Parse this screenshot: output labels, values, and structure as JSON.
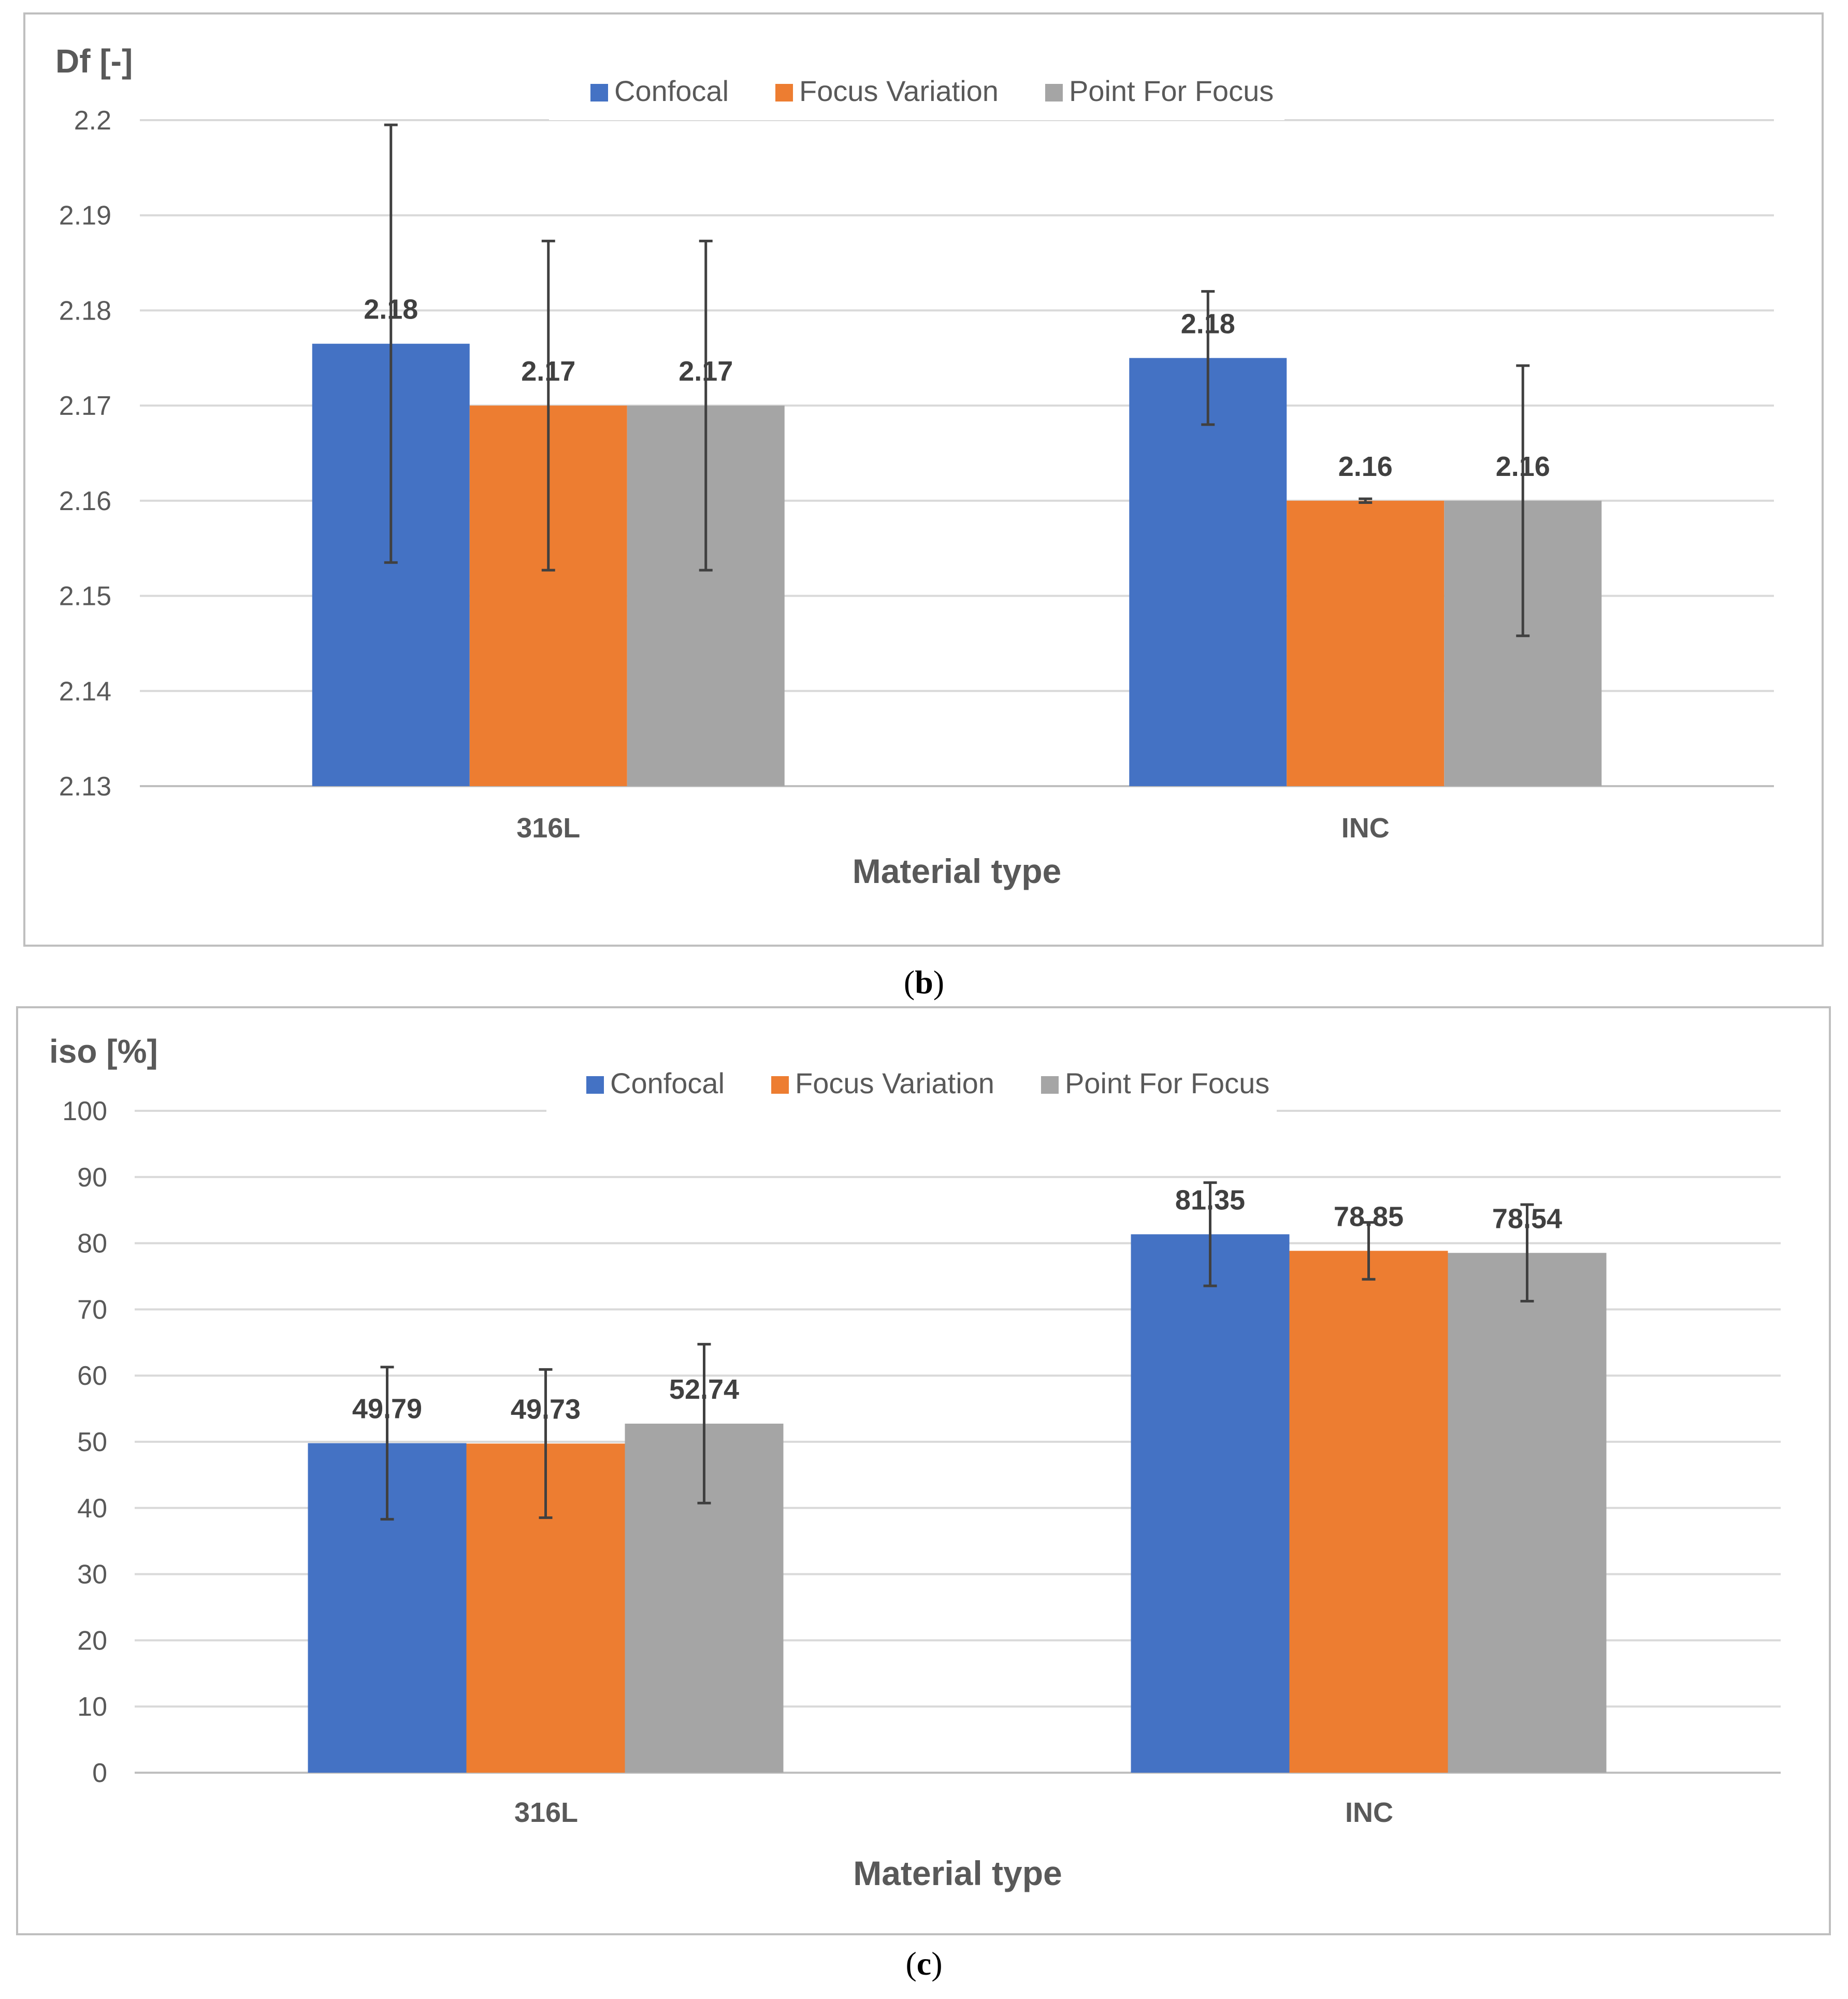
{
  "colors": {
    "confocal": "#4472C4",
    "focus_variation": "#ED7D31",
    "point_for_focus": "#A5A5A5",
    "gridline": "#D9D9D9",
    "frame": "#BFBFBF",
    "text": "#595959",
    "label_text": "#404040"
  },
  "chart_data": [
    {
      "type": "bar",
      "panel_caption": "(b)",
      "caption_letter": "b",
      "title": "",
      "ylabel": "Df [-]",
      "xlabel": "Material type",
      "categories": [
        "316L",
        "INC"
      ],
      "ylim": [
        2.13,
        2.2
      ],
      "yticks": [
        "2.13",
        "2.14",
        "2.15",
        "2.16",
        "2.17",
        "2.18",
        "2.19",
        "2.2"
      ],
      "tick_values": [
        2.13,
        2.14,
        2.15,
        2.16,
        2.17,
        2.18,
        2.19,
        2.2
      ],
      "grid": true,
      "legend_position": "top-center",
      "series": [
        {
          "name": "Confocal",
          "color_key": "confocal",
          "values": [
            2.1765,
            2.175
          ],
          "labels": [
            "2.18",
            "2.18"
          ],
          "errors": [
            0.023,
            0.007
          ]
        },
        {
          "name": "Focus Variation",
          "color_key": "focus_variation",
          "values": [
            2.17,
            2.16
          ],
          "labels": [
            "2.17",
            "2.16"
          ],
          "errors": [
            0.0173,
            0.0002
          ]
        },
        {
          "name": "Point For Focus",
          "color_key": "point_for_focus",
          "values": [
            2.17,
            2.16
          ],
          "labels": [
            "2.17",
            "2.16"
          ],
          "errors": [
            0.0173,
            0.0142
          ]
        }
      ]
    },
    {
      "type": "bar",
      "panel_caption": "(c)",
      "caption_letter": "c",
      "title": "",
      "ylabel": "iso [%]",
      "xlabel": "Material type",
      "categories": [
        "316L",
        "INC"
      ],
      "ylim": [
        0,
        100
      ],
      "yticks": [
        "0",
        "10",
        "20",
        "30",
        "40",
        "50",
        "60",
        "70",
        "80",
        "90",
        "100"
      ],
      "tick_values": [
        0,
        10,
        20,
        30,
        40,
        50,
        60,
        70,
        80,
        90,
        100
      ],
      "grid": true,
      "legend_position": "top-center",
      "series": [
        {
          "name": "Confocal",
          "color_key": "confocal",
          "values": [
            49.79,
            81.35
          ],
          "labels": [
            "49.79",
            "81.35"
          ],
          "errors": [
            11.5,
            7.8
          ]
        },
        {
          "name": "Focus Variation",
          "color_key": "focus_variation",
          "values": [
            49.73,
            78.85
          ],
          "labels": [
            "49.73",
            "78.85"
          ],
          "errors": [
            11.2,
            4.3
          ]
        },
        {
          "name": "Point For Focus",
          "color_key": "point_for_focus",
          "values": [
            52.74,
            78.54
          ],
          "labels": [
            "52.74",
            "78.54"
          ],
          "errors": [
            12.0,
            7.3
          ]
        }
      ]
    }
  ]
}
